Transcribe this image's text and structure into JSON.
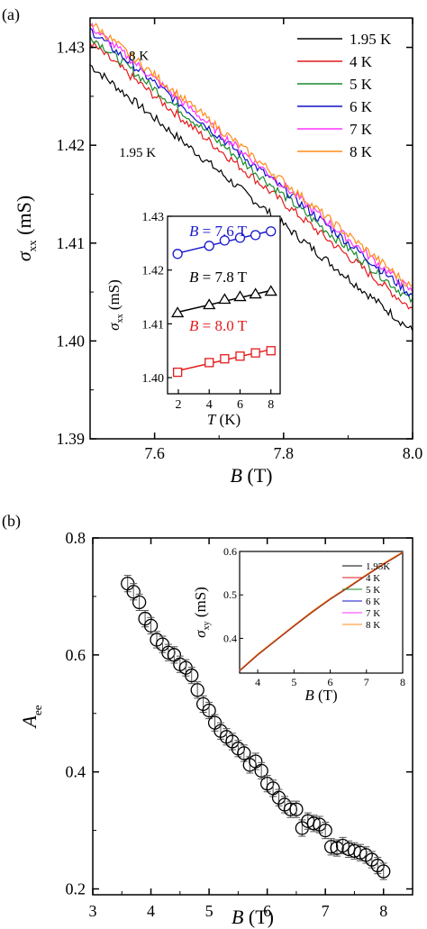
{
  "chart_data": [
    {
      "panel_label": "(a)",
      "type": "line",
      "xlabel": {
        "symbol": "B",
        "unit": " (T)"
      },
      "ylabel": {
        "symbol": "σ",
        "sub": "xx",
        "unit": " (mS)"
      },
      "xlim": [
        7.5,
        8.0
      ],
      "ylim": [
        1.39,
        1.433
      ],
      "xticks": [
        "7.6",
        "7.8",
        "8.0"
      ],
      "yticks": [
        "1.39",
        "1.40",
        "1.41",
        "1.42",
        "1.43"
      ],
      "legend_position": "top-right",
      "annotations": [
        {
          "text": "8 K",
          "x": 7.56,
          "y": 1.4287
        },
        {
          "text": "1.95 K",
          "x": 7.545,
          "y": 1.4188
        }
      ],
      "series": [
        {
          "name": "1.95 K",
          "color": "#000000",
          "x": [
            7.5,
            8.0
          ],
          "y": [
            1.4282,
            1.401
          ]
        },
        {
          "name": "4 K",
          "color": "#e41a1c",
          "x": [
            7.5,
            8.0
          ],
          "y": [
            1.4305,
            1.4032
          ]
        },
        {
          "name": "5 K",
          "color": "#1b8a2e",
          "x": [
            7.5,
            8.0
          ],
          "y": [
            1.4312,
            1.404
          ]
        },
        {
          "name": "6 K",
          "color": "#1010c8",
          "x": [
            7.5,
            8.0
          ],
          "y": [
            1.4318,
            1.4046
          ]
        },
        {
          "name": "7 K",
          "color": "#ff33ff",
          "x": [
            7.5,
            8.0
          ],
          "y": [
            1.4322,
            1.405
          ]
        },
        {
          "name": "8 K",
          "color": "#ff8c1a",
          "x": [
            7.5,
            8.0
          ],
          "y": [
            1.4326,
            1.4054
          ]
        }
      ],
      "inset": {
        "type": "scatter",
        "xlabel": {
          "symbol": "T",
          "unit": " (K)"
        },
        "ylabel": {
          "symbol": "σ",
          "sub": "xx",
          "unit": " (mS)"
        },
        "xlim": [
          1.3,
          8.6
        ],
        "ylim": [
          1.397,
          1.43
        ],
        "xticks": [
          "2",
          "4",
          "6",
          "8"
        ],
        "yticks": [
          "1.40",
          "1.41",
          "1.42",
          "1.43"
        ],
        "series": [
          {
            "name_prefix": "B",
            "name_value": " = 7.6 T",
            "color": "#1a1acc",
            "marker": "circle",
            "x": [
              1.95,
              4,
              5,
              6,
              7,
              8
            ],
            "y": [
              1.423,
              1.4245,
              1.4255,
              1.426,
              1.4265,
              1.4272
            ]
          },
          {
            "name_prefix": "B",
            "name_value": " = 7.8 T",
            "color": "#000000",
            "marker": "triangle",
            "x": [
              1.95,
              4,
              5,
              6,
              7,
              8
            ],
            "y": [
              1.412,
              1.4135,
              1.4145,
              1.415,
              1.4155,
              1.416
            ]
          },
          {
            "name_prefix": "B",
            "name_value": " = 8.0 T",
            "color": "#e41a1c",
            "marker": "square",
            "x": [
              1.95,
              4,
              5,
              6,
              7,
              8
            ],
            "y": [
              1.401,
              1.4028,
              1.4035,
              1.404,
              1.4046,
              1.405
            ]
          }
        ]
      }
    },
    {
      "panel_label": "(b)",
      "type": "scatter",
      "xlabel": {
        "symbol": "B",
        "unit": " (T)"
      },
      "ylabel": {
        "symbol": "A",
        "sub": "ee"
      },
      "xlim": [
        3,
        8.5
      ],
      "ylim": [
        0.19,
        0.8
      ],
      "xticks": [
        "3",
        "4",
        "5",
        "6",
        "7",
        "8"
      ],
      "yticks": [
        "0.2",
        "0.4",
        "0.6",
        "0.8"
      ],
      "error_bars": true,
      "series": [
        {
          "marker": "open-circle",
          "color": "#000000",
          "x": [
            3.6,
            3.7,
            3.8,
            3.9,
            4.0,
            4.1,
            4.2,
            4.3,
            4.4,
            4.5,
            4.6,
            4.7,
            4.8,
            4.9,
            5.0,
            5.1,
            5.2,
            5.3,
            5.4,
            5.5,
            5.6,
            5.7,
            5.8,
            5.9,
            6.0,
            6.1,
            6.2,
            6.3,
            6.4,
            6.5,
            6.6,
            6.7,
            6.8,
            6.9,
            7.0,
            7.1,
            7.2,
            7.3,
            7.4,
            7.5,
            7.6,
            7.7,
            7.8,
            7.9,
            8.0
          ],
          "y": [
            0.722,
            0.708,
            0.69,
            0.662,
            0.65,
            0.626,
            0.618,
            0.604,
            0.6,
            0.584,
            0.578,
            0.565,
            0.54,
            0.516,
            0.505,
            0.484,
            0.47,
            0.46,
            0.452,
            0.44,
            0.432,
            0.412,
            0.418,
            0.402,
            0.38,
            0.372,
            0.356,
            0.344,
            0.336,
            0.336,
            0.304,
            0.316,
            0.312,
            0.31,
            0.3,
            0.272,
            0.27,
            0.274,
            0.268,
            0.265,
            0.262,
            0.258,
            0.25,
            0.24,
            0.23
          ],
          "yerr": 0.014
        }
      ],
      "inset": {
        "type": "line",
        "xlabel": {
          "symbol": "B",
          "unit": " (T)"
        },
        "ylabel": {
          "symbol": "σ",
          "sub": "xy",
          "unit": " (mS)"
        },
        "xlim": [
          3.5,
          8.0
        ],
        "ylim": [
          0.32,
          0.6
        ],
        "xticks": [
          "4",
          "5",
          "6",
          "7",
          "8"
        ],
        "yticks": [
          "0.4",
          "0.5",
          "0.6"
        ],
        "legend_position": "top-right",
        "series": [
          {
            "name": "1.95K",
            "color": "#000000"
          },
          {
            "name": "4 K",
            "color": "#e41a1c"
          },
          {
            "name": "5 K",
            "color": "#1b8a2e"
          },
          {
            "name": "6 K",
            "color": "#1010c8"
          },
          {
            "name": "7 K",
            "color": "#ff33ff"
          },
          {
            "name": "8 K",
            "color": "#ff8c1a"
          }
        ],
        "curve": {
          "x": [
            3.5,
            4.0,
            4.5,
            5.0,
            5.5,
            6.0,
            6.5,
            7.0,
            7.5,
            8.0
          ],
          "y": [
            0.325,
            0.362,
            0.395,
            0.428,
            0.46,
            0.49,
            0.517,
            0.545,
            0.572,
            0.597
          ]
        }
      }
    }
  ]
}
